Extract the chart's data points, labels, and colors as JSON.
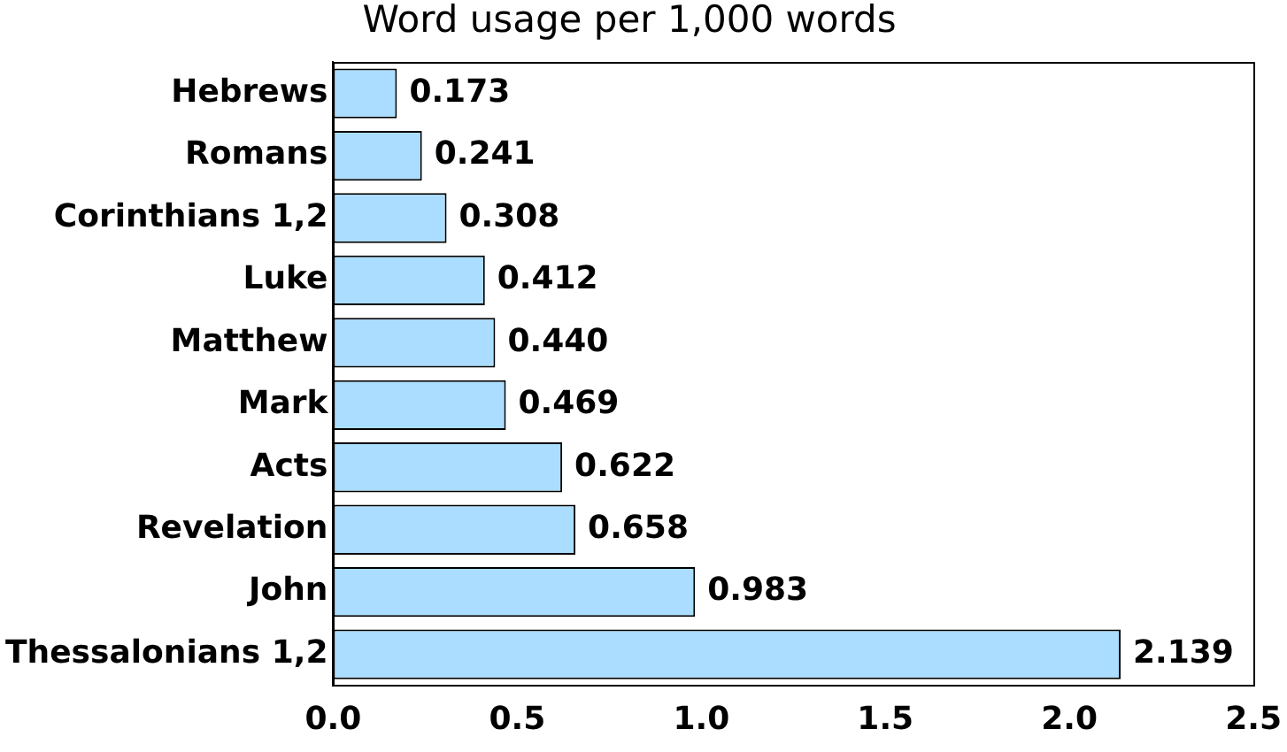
{
  "chart_data": {
    "type": "bar",
    "orientation": "horizontal",
    "title": "Word usage per 1,000 words",
    "categories": [
      "Hebrews",
      "Romans",
      "Corinthians 1,2",
      "Luke",
      "Matthew",
      "Mark",
      "Acts",
      "Revelation",
      "John",
      "Thessalonians 1,2"
    ],
    "values": [
      0.173,
      0.241,
      0.308,
      0.412,
      0.44,
      0.469,
      0.622,
      0.658,
      0.983,
      2.139
    ],
    "value_labels": [
      "0.173",
      "0.241",
      "0.308",
      "0.412",
      "0.440",
      "0.469",
      "0.622",
      "0.658",
      "0.983",
      "2.139"
    ],
    "color": "#aaddff",
    "xlim": [
      0,
      2.5
    ],
    "xticks": [
      {
        "value": 0,
        "label": "0.0"
      },
      {
        "value": 0.5,
        "label": "0.5"
      },
      {
        "value": 1,
        "label": "1.0"
      },
      {
        "value": 1.5,
        "label": "1.5"
      },
      {
        "value": 2,
        "label": "2.0"
      },
      {
        "value": 2.5,
        "label": "2.5"
      }
    ],
    "grid": false,
    "legend": false
  }
}
